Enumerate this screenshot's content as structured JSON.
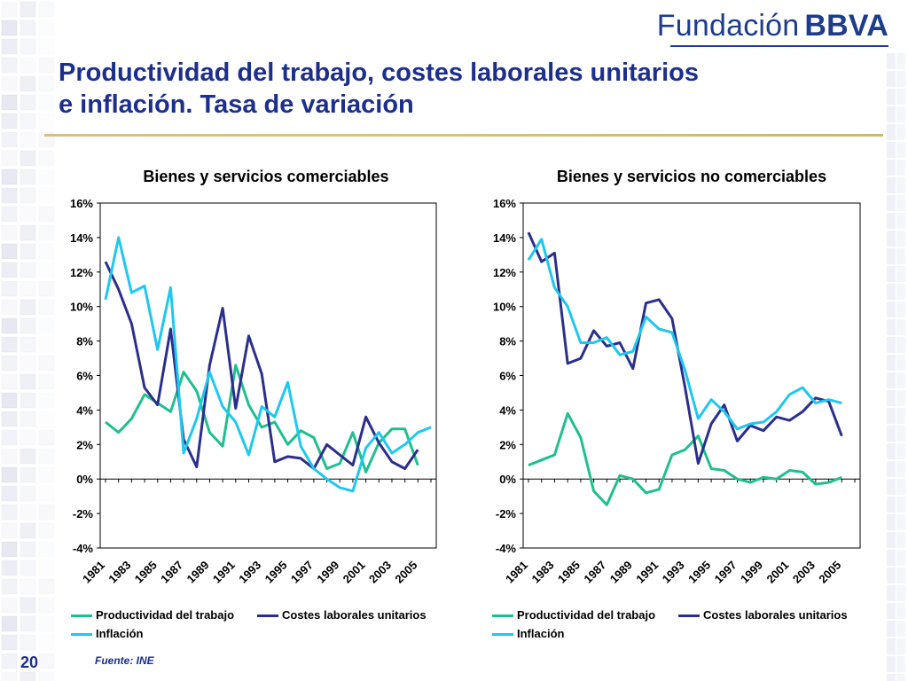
{
  "logo": {
    "word1": "Fundación",
    "word2": "BBVA"
  },
  "slide": {
    "title_line1": "Productividad del trabajo, costes laborales unitarios",
    "title_line2": "e inflación. Tasa de variación",
    "page_number": "20",
    "source": "Fuente:  INE"
  },
  "colors": {
    "productividad": "#1fbf8f",
    "costes": "#2b2f8c",
    "inflacion": "#1ec8ef",
    "title": "#1d2f8c",
    "rule": "#d8c37a"
  },
  "legend": {
    "productividad": "Productividad del trabajo",
    "costes": "Costes laborales unitarios",
    "inflacion": "Inflación"
  },
  "chart_data": [
    {
      "type": "line",
      "title": "Bienes y servicios comerciables",
      "xlabel": "",
      "ylabel": "",
      "ylim": [
        -4,
        16
      ],
      "yticks": [
        -4,
        -2,
        0,
        2,
        4,
        6,
        8,
        10,
        12,
        14,
        16
      ],
      "ytick_labels": [
        "-4%",
        "-2%",
        "0%",
        "2%",
        "4%",
        "6%",
        "8%",
        "10%",
        "12%",
        "14%",
        "16%"
      ],
      "x": [
        1981,
        1982,
        1983,
        1984,
        1985,
        1986,
        1987,
        1988,
        1989,
        1990,
        1991,
        1992,
        1993,
        1994,
        1995,
        1996,
        1997,
        1998,
        1999,
        2000,
        2001,
        2002,
        2003,
        2004,
        2005,
        2006
      ],
      "xtick_labels": [
        "1981",
        "1983",
        "1985",
        "1987",
        "1989",
        "1991",
        "1993",
        "1995",
        "1997",
        "1999",
        "2001",
        "2003",
        "2005"
      ],
      "grid": false,
      "legend_position": "bottom",
      "series": [
        {
          "name": "Productividad del trabajo",
          "values": [
            3.3,
            2.7,
            3.5,
            4.9,
            4.4,
            3.9,
            6.2,
            5.1,
            2.7,
            1.9,
            6.6,
            4.3,
            3.0,
            3.3,
            2.0,
            2.8,
            2.4,
            0.6,
            0.9,
            2.7,
            0.4,
            2.1,
            2.9,
            2.9,
            0.8,
            null
          ]
        },
        {
          "name": "Costes laborales unitarios",
          "values": [
            12.6,
            11.0,
            9.0,
            5.3,
            4.3,
            8.7,
            2.3,
            0.7,
            6.6,
            9.9,
            4.1,
            8.3,
            6.1,
            1.0,
            1.3,
            1.2,
            0.6,
            2.0,
            1.4,
            0.8,
            3.6,
            2.1,
            1.0,
            0.6,
            1.7,
            null
          ]
        },
        {
          "name": "Inflación",
          "values": [
            10.4,
            14.0,
            10.8,
            11.2,
            7.5,
            11.1,
            1.5,
            3.5,
            6.2,
            4.2,
            3.3,
            1.4,
            4.2,
            3.6,
            5.6,
            1.9,
            0.6,
            0.0,
            -0.5,
            -0.7,
            1.8,
            2.7,
            1.5,
            2.0,
            2.7,
            3.0
          ]
        }
      ]
    },
    {
      "type": "line",
      "title": "Bienes y servicios no comerciables",
      "xlabel": "",
      "ylabel": "",
      "ylim": [
        -4,
        16
      ],
      "yticks": [
        -4,
        -2,
        0,
        2,
        4,
        6,
        8,
        10,
        12,
        14,
        16
      ],
      "ytick_labels": [
        "-4%",
        "-2%",
        "0%",
        "2%",
        "4%",
        "6%",
        "8%",
        "10%",
        "12%",
        "14%",
        "16%"
      ],
      "x": [
        1981,
        1982,
        1983,
        1984,
        1985,
        1986,
        1987,
        1988,
        1989,
        1990,
        1991,
        1992,
        1993,
        1994,
        1995,
        1996,
        1997,
        1998,
        1999,
        2000,
        2001,
        2002,
        2003,
        2004,
        2005,
        2006
      ],
      "xtick_labels": [
        "1981",
        "1983",
        "1985",
        "1987",
        "1989",
        "1991",
        "1993",
        "1995",
        "1997",
        "1999",
        "2001",
        "2003",
        "2005"
      ],
      "grid": false,
      "legend_position": "bottom",
      "series": [
        {
          "name": "Productividad del trabajo",
          "values": [
            0.8,
            1.1,
            1.4,
            3.8,
            2.4,
            -0.7,
            -1.5,
            0.2,
            0.0,
            -0.8,
            -0.6,
            1.4,
            1.7,
            2.5,
            0.6,
            0.5,
            0.0,
            -0.2,
            0.1,
            0.0,
            0.5,
            0.4,
            -0.3,
            -0.2,
            0.1,
            null
          ]
        },
        {
          "name": "Costes laborales unitarios",
          "values": [
            14.3,
            12.6,
            13.1,
            6.7,
            7.0,
            8.6,
            7.7,
            7.9,
            6.4,
            10.2,
            10.4,
            9.3,
            5.3,
            0.9,
            3.2,
            4.3,
            2.2,
            3.1,
            2.8,
            3.6,
            3.4,
            3.9,
            4.7,
            4.5,
            2.5,
            null
          ]
        },
        {
          "name": "Inflación",
          "values": [
            12.7,
            13.9,
            11.1,
            10.0,
            7.9,
            7.9,
            8.2,
            7.2,
            7.4,
            9.4,
            8.7,
            8.5,
            6.3,
            3.5,
            4.6,
            3.9,
            2.9,
            3.2,
            3.3,
            3.9,
            4.9,
            5.3,
            4.4,
            4.6,
            4.4,
            null
          ]
        }
      ]
    }
  ]
}
